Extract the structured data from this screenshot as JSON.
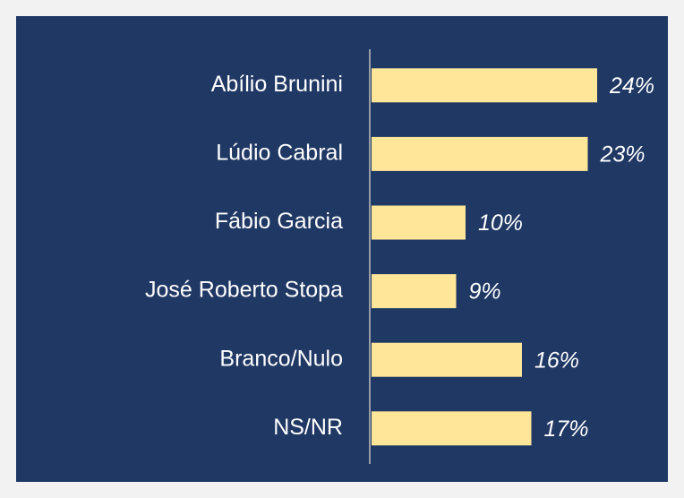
{
  "chart_data": {
    "type": "bar",
    "orientation": "horizontal",
    "categories": [
      "Abílio Brunini",
      "Lúdio Cabral",
      "Fábio Garcia",
      "José Roberto Stopa",
      "Branco/Nulo",
      "NS/NR"
    ],
    "values": [
      24,
      23,
      10,
      9,
      16,
      17
    ],
    "value_labels": [
      "24%",
      "23%",
      "10%",
      "9%",
      "16%",
      "17%"
    ],
    "color": "#ffe699"
  }
}
